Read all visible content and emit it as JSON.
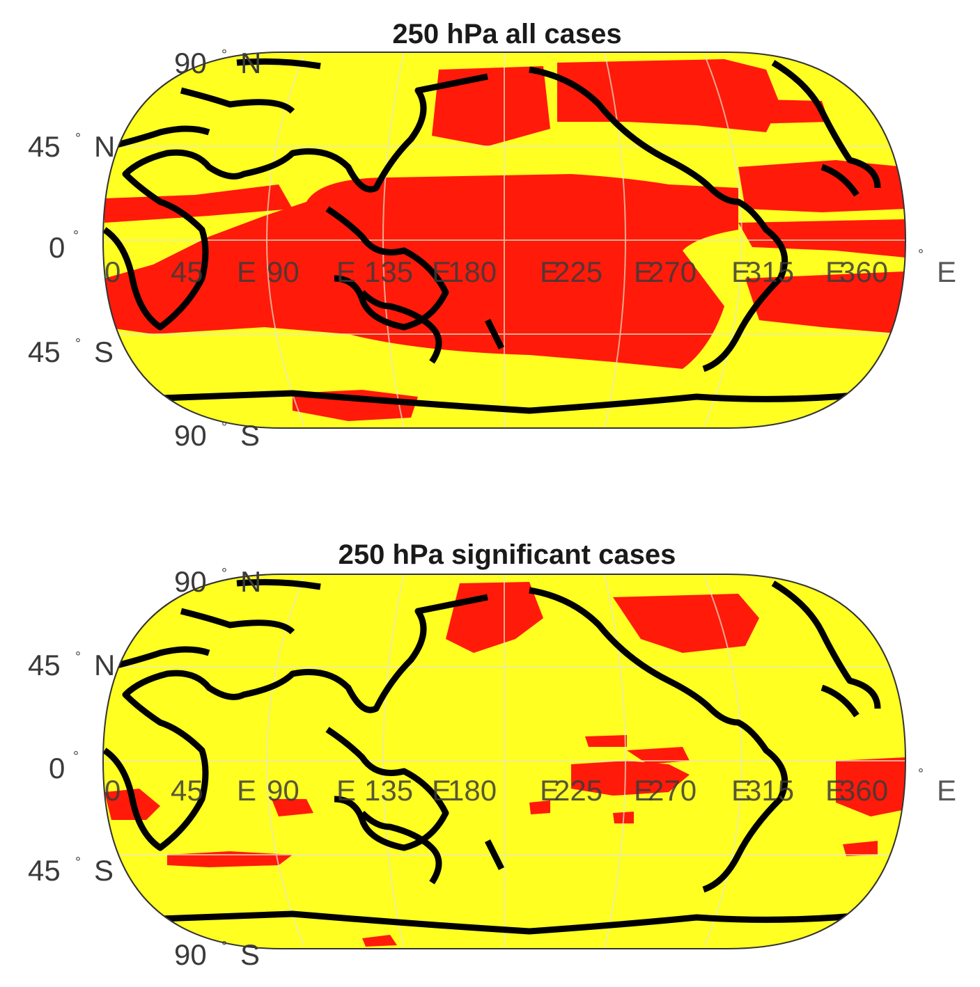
{
  "colors": {
    "ocean_background": "#ffff22",
    "highlight_region": "#ff1a0a",
    "coastline": "#000000",
    "graticule": "#e8e8c8"
  },
  "panels": [
    {
      "id": "top",
      "title": "250 hPa all cases",
      "lat_labels": [
        "90",
        "N",
        "45",
        "N",
        "0",
        "45",
        "S",
        "90",
        "S"
      ],
      "lon_labels": [
        "0",
        "45",
        "E",
        "90",
        "E",
        "135",
        "E",
        "180",
        "E",
        "225",
        "E",
        "270",
        "E",
        "315",
        "E",
        "360",
        "E"
      ]
    },
    {
      "id": "bottom",
      "title": "250 hPa significant cases",
      "lat_labels": [
        "90",
        "N",
        "45",
        "N",
        "0",
        "45",
        "S",
        "90",
        "S"
      ],
      "lon_labels": [
        "0",
        "45",
        "E",
        "90",
        "E",
        "135",
        "E",
        "180",
        "E",
        "225",
        "E",
        "270",
        "E",
        "315",
        "E",
        "360",
        "E"
      ]
    }
  ]
}
